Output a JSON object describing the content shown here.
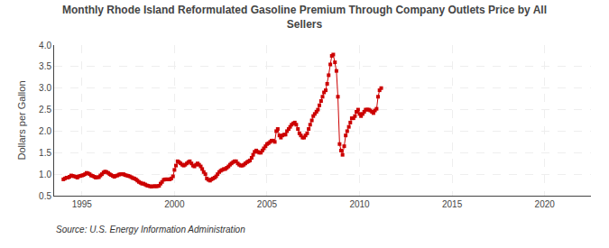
{
  "chart_data": {
    "type": "line",
    "title": "Monthly Rhode Island Reformulated Gasoline Premium Through Company Outlets Price by All\nSellers",
    "ylabel": "Dollars per Gallon",
    "annotations": [
      "Source: U.S. Energy Information Administration"
    ],
    "color": "#cc0000",
    "marker": "square",
    "line_style": "solid",
    "grid": true,
    "xlim": [
      1993.5,
      2022.5
    ],
    "ylim": [
      0.5,
      4.0
    ],
    "xticks": [
      1995,
      2000,
      2005,
      2010,
      2015,
      2020
    ],
    "yticks": [
      0.5,
      {
        "value": 1.0,
        "label": "1.0"
      },
      1.5,
      {
        "value": 2.0,
        "label": "2.0"
      },
      2.5,
      {
        "value": 3.0,
        "label": "3.0"
      },
      3.5,
      {
        "value": 4.0,
        "label": "4.0"
      }
    ],
    "x": [
      1994.0,
      1994.08,
      1994.17,
      1994.25,
      1994.33,
      1994.42,
      1994.5,
      1994.58,
      1994.67,
      1994.75,
      1994.83,
      1994.92,
      1995.0,
      1995.08,
      1995.17,
      1995.25,
      1995.33,
      1995.42,
      1995.5,
      1995.58,
      1995.67,
      1995.75,
      1995.83,
      1995.92,
      1996.0,
      1996.08,
      1996.17,
      1996.25,
      1996.33,
      1996.42,
      1996.5,
      1996.58,
      1996.67,
      1996.75,
      1996.83,
      1996.92,
      1997.0,
      1997.08,
      1997.17,
      1997.25,
      1997.33,
      1997.42,
      1997.5,
      1997.58,
      1997.67,
      1997.75,
      1997.83,
      1997.92,
      1998.0,
      1998.08,
      1998.17,
      1998.25,
      1998.33,
      1998.42,
      1998.5,
      1998.58,
      1998.67,
      1998.75,
      1998.83,
      1998.92,
      1999.0,
      1999.08,
      1999.17,
      1999.25,
      1999.33,
      1999.42,
      1999.5,
      1999.58,
      1999.67,
      1999.75,
      1999.83,
      1999.92,
      2000.0,
      2000.08,
      2000.17,
      2000.25,
      2000.33,
      2000.42,
      2000.5,
      2000.58,
      2000.67,
      2000.75,
      2000.83,
      2000.92,
      2001.0,
      2001.08,
      2001.17,
      2001.25,
      2001.33,
      2001.42,
      2001.5,
      2001.58,
      2001.67,
      2001.75,
      2001.83,
      2001.92,
      2002.0,
      2002.08,
      2002.17,
      2002.25,
      2002.33,
      2002.42,
      2002.5,
      2002.58,
      2002.67,
      2002.75,
      2002.83,
      2002.92,
      2003.0,
      2003.08,
      2003.17,
      2003.25,
      2003.33,
      2003.42,
      2003.5,
      2003.58,
      2003.67,
      2003.75,
      2003.83,
      2003.92,
      2004.0,
      2004.08,
      2004.17,
      2004.25,
      2004.33,
      2004.42,
      2004.5,
      2004.58,
      2004.67,
      2004.75,
      2004.83,
      2004.92,
      2005.0,
      2005.08,
      2005.17,
      2005.25,
      2005.33,
      2005.42,
      2005.5,
      2005.58,
      2005.67,
      2005.75,
      2005.83,
      2005.92,
      2006.0,
      2006.08,
      2006.17,
      2006.25,
      2006.33,
      2006.42,
      2006.5,
      2006.58,
      2006.67,
      2006.75,
      2006.83,
      2006.92,
      2007.0,
      2007.08,
      2007.17,
      2007.25,
      2007.33,
      2007.42,
      2007.5,
      2007.58,
      2007.67,
      2007.75,
      2007.83,
      2007.92,
      2008.0,
      2008.08,
      2008.17,
      2008.25,
      2008.33,
      2008.42,
      2008.5,
      2008.58,
      2008.67,
      2008.75,
      2008.83,
      2008.92,
      2009.0,
      2009.08,
      2009.17,
      2009.25,
      2009.33,
      2009.42,
      2009.5,
      2009.58,
      2009.67,
      2009.75,
      2009.83,
      2009.92,
      2010.0,
      2010.08,
      2010.17,
      2010.25,
      2010.33,
      2010.42,
      2010.5,
      2010.58,
      2010.67,
      2010.75,
      2010.83,
      2010.92,
      2011.0,
      2011.08,
      2011.17
    ],
    "values": [
      0.88,
      0.9,
      0.92,
      0.92,
      0.94,
      0.97,
      0.96,
      0.95,
      0.94,
      0.92,
      0.95,
      0.96,
      0.97,
      0.98,
      1.0,
      1.03,
      1.02,
      1.0,
      0.97,
      0.96,
      0.94,
      0.92,
      0.93,
      0.93,
      0.97,
      1.0,
      1.04,
      1.06,
      1.05,
      1.03,
      1.0,
      0.98,
      0.96,
      0.94,
      0.96,
      0.97,
      0.99,
      1.0,
      1.0,
      1.0,
      0.98,
      0.97,
      0.96,
      0.95,
      0.93,
      0.91,
      0.9,
      0.88,
      0.85,
      0.82,
      0.8,
      0.78,
      0.78,
      0.76,
      0.74,
      0.73,
      0.72,
      0.71,
      0.72,
      0.72,
      0.72,
      0.72,
      0.73,
      0.78,
      0.82,
      0.87,
      0.88,
      0.88,
      0.88,
      0.88,
      0.9,
      0.95,
      1.1,
      1.2,
      1.3,
      1.28,
      1.25,
      1.22,
      1.2,
      1.22,
      1.25,
      1.28,
      1.3,
      1.25,
      1.2,
      1.18,
      1.22,
      1.25,
      1.22,
      1.18,
      1.12,
      1.05,
      1.0,
      0.9,
      0.87,
      0.85,
      0.88,
      0.9,
      0.92,
      0.95,
      1.0,
      1.05,
      1.08,
      1.1,
      1.12,
      1.12,
      1.15,
      1.18,
      1.22,
      1.25,
      1.28,
      1.3,
      1.3,
      1.25,
      1.22,
      1.2,
      1.2,
      1.22,
      1.25,
      1.28,
      1.3,
      1.32,
      1.38,
      1.45,
      1.52,
      1.55,
      1.52,
      1.5,
      1.5,
      1.55,
      1.6,
      1.65,
      1.7,
      1.72,
      1.75,
      1.78,
      1.78,
      1.75,
      2.0,
      2.05,
      1.9,
      1.85,
      1.9,
      1.92,
      1.92,
      2.0,
      2.05,
      2.1,
      2.15,
      2.18,
      2.2,
      2.15,
      2.05,
      1.95,
      1.9,
      1.85,
      1.85,
      1.9,
      1.95,
      2.05,
      2.15,
      2.25,
      2.35,
      2.4,
      2.45,
      2.5,
      2.6,
      2.7,
      2.8,
      2.9,
      2.95,
      3.1,
      3.3,
      3.55,
      3.75,
      3.78,
      3.6,
      3.4,
      2.8,
      1.7,
      1.55,
      1.45,
      1.65,
      1.9,
      2.0,
      2.1,
      2.2,
      2.3,
      2.3,
      2.35,
      2.45,
      2.5,
      2.4,
      2.35,
      2.4,
      2.45,
      2.5,
      2.5,
      2.5,
      2.48,
      2.45,
      2.42,
      2.48,
      2.52,
      2.8,
      2.95,
      3.0
    ]
  }
}
